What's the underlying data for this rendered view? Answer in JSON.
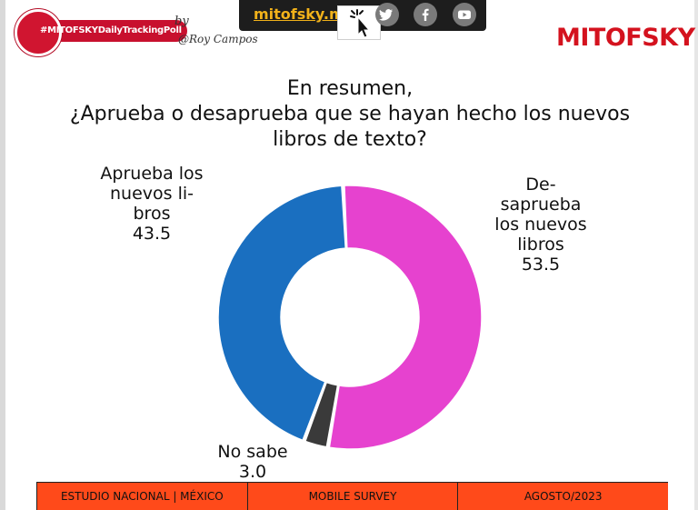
{
  "header": {
    "site_link": "mitofsky.mx",
    "tracking_badge": "#MITOFSKYDailyTrackingPoll",
    "by_label": "by",
    "signature": "@Roy Campos",
    "brand": "MITOFSKY",
    "social_icons": [
      "twitter-icon",
      "facebook-icon",
      "youtube-icon"
    ]
  },
  "title_lines": [
    "En resumen,",
    "¿Aprueba o desaprueba que se hayan hecho los nuevos",
    "libros de texto?"
  ],
  "chart_data": {
    "type": "pie",
    "donut": true,
    "title": "En resumen, ¿Aprueba o desaprueba que se hayan hecho los nuevos libros de texto?",
    "slices": [
      {
        "label": "Desaprueba los nuevos libros",
        "label_lines": [
          "De-",
          "saprueba",
          "los nuevos",
          "libros"
        ],
        "value": 53.5,
        "value_text": "53.5",
        "color": "#e642cf"
      },
      {
        "label": "No sabe",
        "label_lines": [
          "No sabe"
        ],
        "value": 3.0,
        "value_text": "3.0",
        "color": "#3a3a3a"
      },
      {
        "label": "Aprueba los nuevos libros",
        "label_lines": [
          "Aprueba los",
          "nuevos li-",
          "bros"
        ],
        "value": 43.5,
        "value_text": "43.5",
        "color": "#1a6fc0"
      }
    ]
  },
  "footer": {
    "cells": [
      "ESTUDIO NACIONAL | MÉXICO",
      "MOBILE SURVEY",
      "AGOSTO/2023"
    ]
  }
}
